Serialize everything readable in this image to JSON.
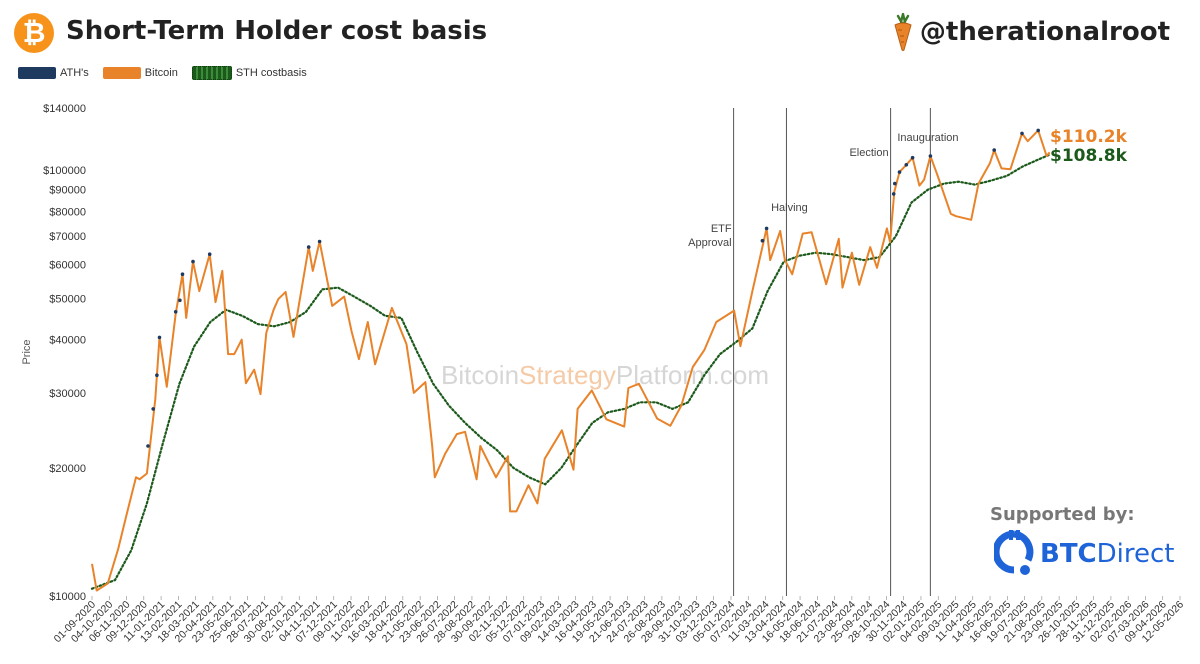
{
  "header": {
    "title": "Short-Term Holder cost basis",
    "handle": "@therationalroot",
    "logo_glyph": "₿",
    "logo_color": "#f7931a"
  },
  "legend": [
    {
      "label": "ATH's",
      "color": "#1f3a5f"
    },
    {
      "label": "Bitcoin",
      "color": "#e8832a"
    },
    {
      "label": "STH costbasis",
      "color": "#1c5a1c"
    }
  ],
  "sponsor": {
    "label": "Supported by:",
    "name_bold": "BTC",
    "name_light": "Direct",
    "color": "#1e63d8"
  },
  "chart_data": {
    "type": "line",
    "title": "Short-Term Holder cost basis",
    "xlabel": "",
    "ylabel": "Price",
    "yscale": "log",
    "ylim": [
      10000,
      140000
    ],
    "xlim": [
      "2020-09-01",
      "2026-05-12"
    ],
    "grid": false,
    "watermark": {
      "part1": "Bitcoin",
      "part2": "Strategy",
      "part3": "Platform.com"
    },
    "y_ticks": [
      {
        "value": 10000,
        "label": "$10000"
      },
      {
        "value": 20000,
        "label": "$20000"
      },
      {
        "value": 30000,
        "label": "$30000"
      },
      {
        "value": 40000,
        "label": "$40000"
      },
      {
        "value": 50000,
        "label": "$50000"
      },
      {
        "value": 60000,
        "label": "$60000"
      },
      {
        "value": 70000,
        "label": "$70000"
      },
      {
        "value": 80000,
        "label": "$80000"
      },
      {
        "value": 90000,
        "label": "$90000"
      },
      {
        "value": 100000,
        "label": "$100000"
      },
      {
        "value": 140000,
        "label": "$140000"
      }
    ],
    "x_tick_labels": [
      "01-09-2020",
      "04-10-2020",
      "06-11-2020",
      "09-12-2020",
      "11-01-2021",
      "13-02-2021",
      "18-03-2021",
      "20-04-2021",
      "23-05-2021",
      "25-06-2021",
      "28-07-2021",
      "30-08-2021",
      "02-10-2021",
      "04-11-2021",
      "07-12-2021",
      "09-01-2022",
      "11-02-2022",
      "16-03-2022",
      "18-04-2022",
      "21-05-2022",
      "23-06-2022",
      "26-07-2022",
      "28-08-2022",
      "30-09-2022",
      "02-11-2022",
      "05-12-2022",
      "07-01-2023",
      "09-02-2023",
      "14-03-2023",
      "16-04-2023",
      "19-05-2023",
      "21-06-2023",
      "24-07-2023",
      "26-08-2023",
      "28-09-2023",
      "31-10-2023",
      "03-12-2023",
      "05-01-2024",
      "07-02-2024",
      "11-03-2024",
      "13-04-2024",
      "16-05-2024",
      "18-06-2024",
      "21-07-2024",
      "23-08-2024",
      "25-09-2024",
      "28-10-2024",
      "30-11-2024",
      "02-01-2025",
      "04-02-2025",
      "09-03-2025",
      "11-04-2025",
      "14-05-2025",
      "16-06-2025",
      "19-07-2025",
      "21-08-2025",
      "23-09-2025",
      "26-10-2025",
      "28-11-2025",
      "31-12-2025",
      "02-02-2026",
      "07-03-2026",
      "09-04-2026",
      "12-05-2026"
    ],
    "events": [
      {
        "label": "ETF Approval",
        "date": "2024-01-10"
      },
      {
        "label": "Halving",
        "date": "2024-04-20"
      },
      {
        "label": "Election",
        "date": "2024-11-05"
      },
      {
        "label": "Inauguration",
        "date": "2025-01-20"
      }
    ],
    "end_labels": [
      {
        "text": "$110.2k",
        "series": "Bitcoin",
        "color": "#e8832a"
      },
      {
        "text": "$108.8k",
        "series": "STH costbasis",
        "color": "#1c5a1c"
      }
    ],
    "series": [
      {
        "name": "Bitcoin",
        "color": "#e8832a",
        "points": [
          [
            "2020-09-01",
            11900
          ],
          [
            "2020-09-10",
            10300
          ],
          [
            "2020-10-01",
            10700
          ],
          [
            "2020-10-21",
            12900
          ],
          [
            "2020-11-06",
            15500
          ],
          [
            "2020-11-24",
            19000
          ],
          [
            "2020-12-01",
            18800
          ],
          [
            "2020-12-15",
            19400
          ],
          [
            "2020-12-31",
            29000
          ],
          [
            "2021-01-08",
            40500
          ],
          [
            "2021-01-22",
            31000
          ],
          [
            "2021-02-08",
            46000
          ],
          [
            "2021-02-21",
            57000
          ],
          [
            "2021-02-28",
            45000
          ],
          [
            "2021-03-13",
            61000
          ],
          [
            "2021-03-25",
            52000
          ],
          [
            "2021-04-14",
            63500
          ],
          [
            "2021-04-25",
            49000
          ],
          [
            "2021-05-08",
            58000
          ],
          [
            "2021-05-19",
            37000
          ],
          [
            "2021-05-31",
            37000
          ],
          [
            "2021-06-14",
            40000
          ],
          [
            "2021-06-22",
            31600
          ],
          [
            "2021-07-08",
            34000
          ],
          [
            "2021-07-20",
            29800
          ],
          [
            "2021-07-31",
            41500
          ],
          [
            "2021-08-14",
            47000
          ],
          [
            "2021-08-23",
            49800
          ],
          [
            "2021-09-06",
            51800
          ],
          [
            "2021-09-21",
            40600
          ],
          [
            "2021-10-01",
            48000
          ],
          [
            "2021-10-20",
            66000
          ],
          [
            "2021-10-28",
            58000
          ],
          [
            "2021-11-10",
            68000
          ],
          [
            "2021-11-26",
            54000
          ],
          [
            "2021-12-04",
            48000
          ],
          [
            "2021-12-27",
            50500
          ],
          [
            "2022-01-10",
            41800
          ],
          [
            "2022-01-24",
            36000
          ],
          [
            "2022-02-10",
            44000
          ],
          [
            "2022-02-24",
            35000
          ],
          [
            "2022-03-28",
            47500
          ],
          [
            "2022-04-25",
            39000
          ],
          [
            "2022-05-09",
            30000
          ],
          [
            "2022-05-31",
            31800
          ],
          [
            "2022-06-13",
            22500
          ],
          [
            "2022-06-18",
            19000
          ],
          [
            "2022-07-08",
            21600
          ],
          [
            "2022-07-30",
            24000
          ],
          [
            "2022-08-15",
            24300
          ],
          [
            "2022-09-06",
            18800
          ],
          [
            "2022-09-13",
            22500
          ],
          [
            "2022-10-13",
            19000
          ],
          [
            "2022-11-05",
            21300
          ],
          [
            "2022-11-09",
            15800
          ],
          [
            "2022-11-21",
            15800
          ],
          [
            "2022-12-14",
            18200
          ],
          [
            "2022-12-31",
            16500
          ],
          [
            "2023-01-14",
            21000
          ],
          [
            "2023-02-16",
            24500
          ],
          [
            "2023-03-10",
            19800
          ],
          [
            "2023-03-18",
            27500
          ],
          [
            "2023-04-14",
            30400
          ],
          [
            "2023-05-12",
            26000
          ],
          [
            "2023-06-15",
            25000
          ],
          [
            "2023-06-23",
            30800
          ],
          [
            "2023-07-13",
            31500
          ],
          [
            "2023-08-17",
            26100
          ],
          [
            "2023-09-11",
            25100
          ],
          [
            "2023-10-02",
            28000
          ],
          [
            "2023-10-24",
            34500
          ],
          [
            "2023-11-15",
            37800
          ],
          [
            "2023-12-08",
            44000
          ],
          [
            "2024-01-11",
            46800
          ],
          [
            "2024-01-23",
            38600
          ],
          [
            "2024-02-15",
            52000
          ],
          [
            "2024-03-13",
            73000
          ],
          [
            "2024-03-20",
            61500
          ],
          [
            "2024-04-08",
            72000
          ],
          [
            "2024-04-17",
            61500
          ],
          [
            "2024-05-01",
            57000
          ],
          [
            "2024-05-21",
            71000
          ],
          [
            "2024-06-07",
            71500
          ],
          [
            "2024-07-05",
            54000
          ],
          [
            "2024-07-29",
            69000
          ],
          [
            "2024-08-05",
            53000
          ],
          [
            "2024-08-23",
            64000
          ],
          [
            "2024-09-06",
            53800
          ],
          [
            "2024-09-27",
            66000
          ],
          [
            "2024-10-10",
            59000
          ],
          [
            "2024-10-29",
            73000
          ],
          [
            "2024-11-04",
            67800
          ],
          [
            "2024-11-12",
            89000
          ],
          [
            "2024-11-22",
            99000
          ],
          [
            "2024-12-05",
            103000
          ],
          [
            "2024-12-17",
            107000
          ],
          [
            "2024-12-30",
            92000
          ],
          [
            "2025-01-08",
            95000
          ],
          [
            "2025-01-20",
            108000
          ],
          [
            "2025-02-03",
            97000
          ],
          [
            "2025-02-28",
            79000
          ],
          [
            "2025-03-10",
            78000
          ],
          [
            "2025-04-08",
            76500
          ],
          [
            "2025-04-22",
            93000
          ],
          [
            "2025-05-14",
            104000
          ],
          [
            "2025-05-22",
            111500
          ],
          [
            "2025-06-05",
            101000
          ],
          [
            "2025-06-22",
            100500
          ],
          [
            "2025-07-14",
            122000
          ],
          [
            "2025-07-25",
            117000
          ],
          [
            "2025-08-14",
            124000
          ],
          [
            "2025-08-30",
            108000
          ],
          [
            "2025-09-05",
            110200
          ]
        ]
      },
      {
        "name": "STH costbasis",
        "color": "#1c5a1c",
        "points": [
          [
            "2020-09-01",
            10400
          ],
          [
            "2020-10-15",
            10900
          ],
          [
            "2020-11-15",
            12800
          ],
          [
            "2020-12-15",
            16500
          ],
          [
            "2021-01-15",
            23000
          ],
          [
            "2021-02-15",
            31500
          ],
          [
            "2021-03-15",
            38500
          ],
          [
            "2021-04-15",
            44000
          ],
          [
            "2021-05-15",
            47000
          ],
          [
            "2021-06-15",
            45500
          ],
          [
            "2021-07-15",
            43500
          ],
          [
            "2021-08-15",
            43000
          ],
          [
            "2021-09-15",
            44000
          ],
          [
            "2021-10-15",
            46500
          ],
          [
            "2021-11-15",
            52500
          ],
          [
            "2021-12-15",
            53000
          ],
          [
            "2022-01-15",
            50500
          ],
          [
            "2022-02-15",
            48000
          ],
          [
            "2022-03-15",
            45500
          ],
          [
            "2022-04-15",
            45000
          ],
          [
            "2022-05-15",
            37500
          ],
          [
            "2022-06-15",
            31500
          ],
          [
            "2022-07-15",
            28000
          ],
          [
            "2022-08-15",
            25500
          ],
          [
            "2022-09-15",
            23500
          ],
          [
            "2022-10-15",
            22000
          ],
          [
            "2022-11-15",
            20000
          ],
          [
            "2022-12-15",
            19000
          ],
          [
            "2023-01-15",
            18300
          ],
          [
            "2023-02-15",
            20000
          ],
          [
            "2023-03-15",
            22500
          ],
          [
            "2023-04-15",
            25500
          ],
          [
            "2023-05-15",
            27000
          ],
          [
            "2023-06-15",
            27500
          ],
          [
            "2023-07-15",
            28500
          ],
          [
            "2023-08-15",
            28500
          ],
          [
            "2023-09-15",
            27500
          ],
          [
            "2023-10-15",
            28500
          ],
          [
            "2023-11-15",
            33000
          ],
          [
            "2023-12-15",
            37000
          ],
          [
            "2024-01-15",
            39500
          ],
          [
            "2024-02-15",
            42500
          ],
          [
            "2024-03-15",
            52000
          ],
          [
            "2024-04-15",
            61000
          ],
          [
            "2024-05-15",
            63000
          ],
          [
            "2024-06-15",
            64000
          ],
          [
            "2024-07-15",
            63500
          ],
          [
            "2024-08-15",
            62500
          ],
          [
            "2024-09-15",
            61500
          ],
          [
            "2024-10-15",
            62500
          ],
          [
            "2024-11-15",
            70000
          ],
          [
            "2024-12-15",
            84000
          ],
          [
            "2025-01-15",
            90000
          ],
          [
            "2025-02-15",
            93000
          ],
          [
            "2025-03-15",
            94000
          ],
          [
            "2025-04-15",
            92500
          ],
          [
            "2025-05-15",
            94500
          ],
          [
            "2025-06-15",
            97000
          ],
          [
            "2025-07-15",
            102000
          ],
          [
            "2025-08-15",
            106000
          ],
          [
            "2025-09-05",
            108800
          ]
        ]
      },
      {
        "name": "ATH's",
        "color": "#1f3a5f",
        "points": [
          [
            "2020-12-17",
            22500
          ],
          [
            "2020-12-27",
            27500
          ],
          [
            "2021-01-03",
            33000
          ],
          [
            "2021-01-08",
            40500
          ],
          [
            "2021-02-08",
            46500
          ],
          [
            "2021-02-16",
            49500
          ],
          [
            "2021-02-21",
            57000
          ],
          [
            "2021-03-13",
            61000
          ],
          [
            "2021-04-14",
            63500
          ],
          [
            "2021-10-20",
            66000
          ],
          [
            "2021-11-10",
            68000
          ],
          [
            "2024-03-05",
            68300
          ],
          [
            "2024-03-13",
            73000
          ],
          [
            "2024-11-11",
            88000
          ],
          [
            "2024-11-13",
            93000
          ],
          [
            "2024-11-22",
            99000
          ],
          [
            "2024-12-05",
            103000
          ],
          [
            "2024-12-17",
            107000
          ],
          [
            "2025-01-20",
            108000
          ],
          [
            "2025-05-22",
            111500
          ],
          [
            "2025-07-14",
            122000
          ],
          [
            "2025-08-14",
            124000
          ]
        ]
      }
    ]
  }
}
